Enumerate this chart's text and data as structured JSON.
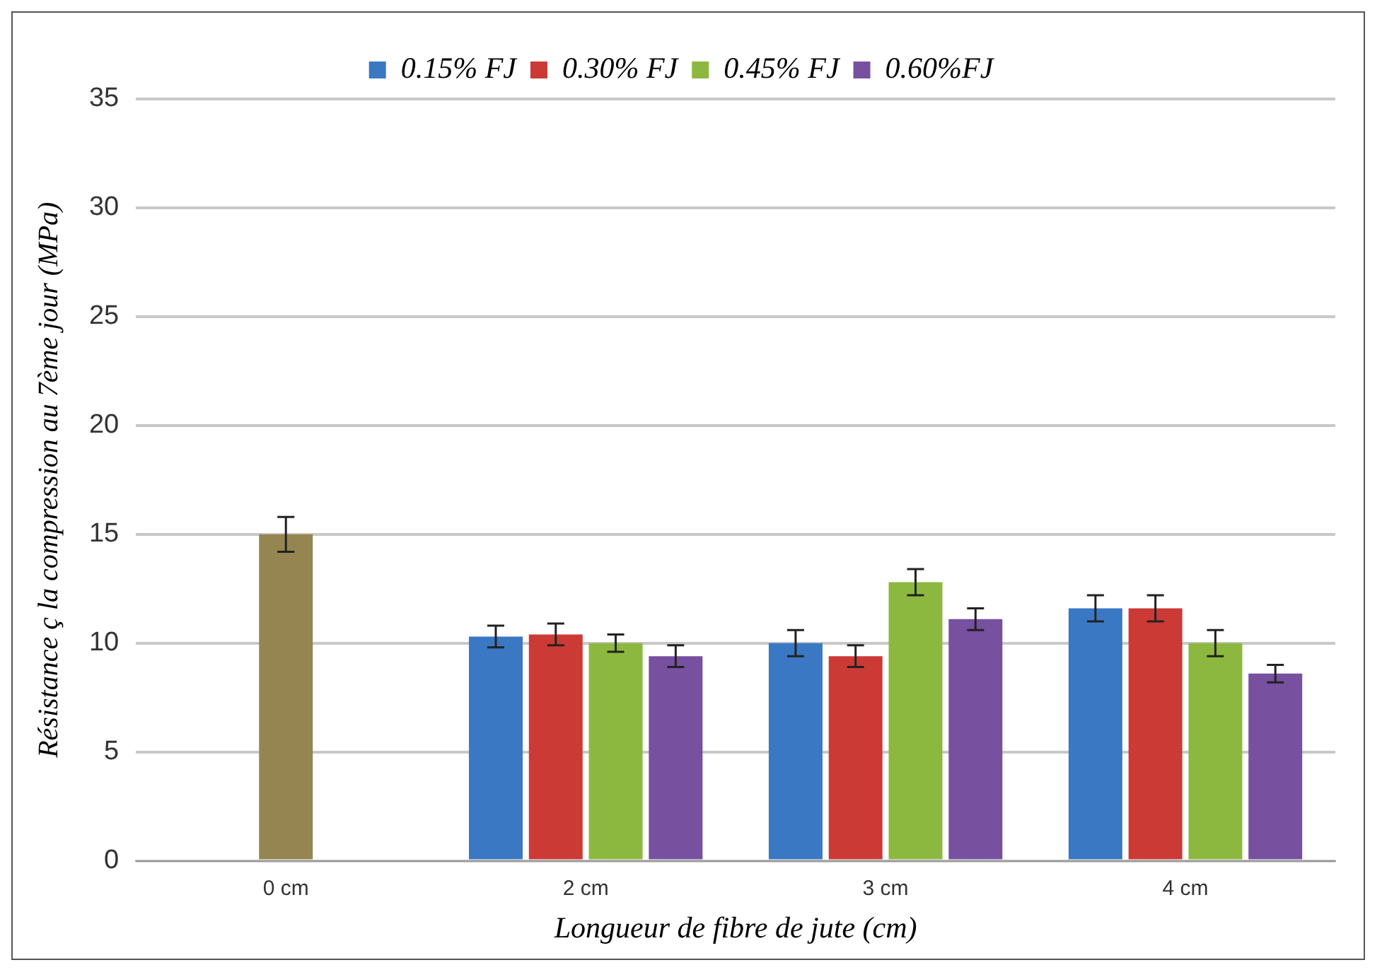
{
  "chart_data": {
    "type": "bar",
    "xlabel": "Longueur de fibre de jute (cm)",
    "ylabel": "Résistance ç la compression au 7ème jour (MPa)",
    "categories": [
      "0 cm",
      "2 cm",
      "3 cm",
      "4 cm"
    ],
    "series": [
      {
        "name": "0.15% FJ",
        "color": "#3a78c3",
        "values": [
          null,
          10.3,
          10.0,
          11.6
        ],
        "errors": [
          null,
          0.5,
          0.6,
          0.6
        ]
      },
      {
        "name": "0.30% FJ",
        "color": "#cc3a36",
        "values": [
          null,
          10.4,
          9.4,
          11.6
        ],
        "errors": [
          null,
          0.5,
          0.5,
          0.6
        ]
      },
      {
        "name": "0.45% FJ",
        "color": "#8db83f",
        "values": [
          null,
          10.0,
          12.8,
          10.0
        ],
        "errors": [
          null,
          0.4,
          0.6,
          0.6
        ]
      },
      {
        "name": "0.60%FJ",
        "color": "#7750a0",
        "values": [
          null,
          9.4,
          11.1,
          8.6
        ],
        "errors": [
          null,
          0.5,
          0.5,
          0.4
        ]
      },
      {
        "color": "#958550",
        "values": [
          15.0,
          null,
          null,
          null
        ],
        "errors": [
          0.8,
          null,
          null,
          null
        ]
      }
    ],
    "ylim": [
      0,
      35
    ],
    "yticks": [
      0,
      5,
      10,
      15,
      20,
      25,
      30,
      35
    ],
    "grid": "y",
    "legend": "top"
  }
}
